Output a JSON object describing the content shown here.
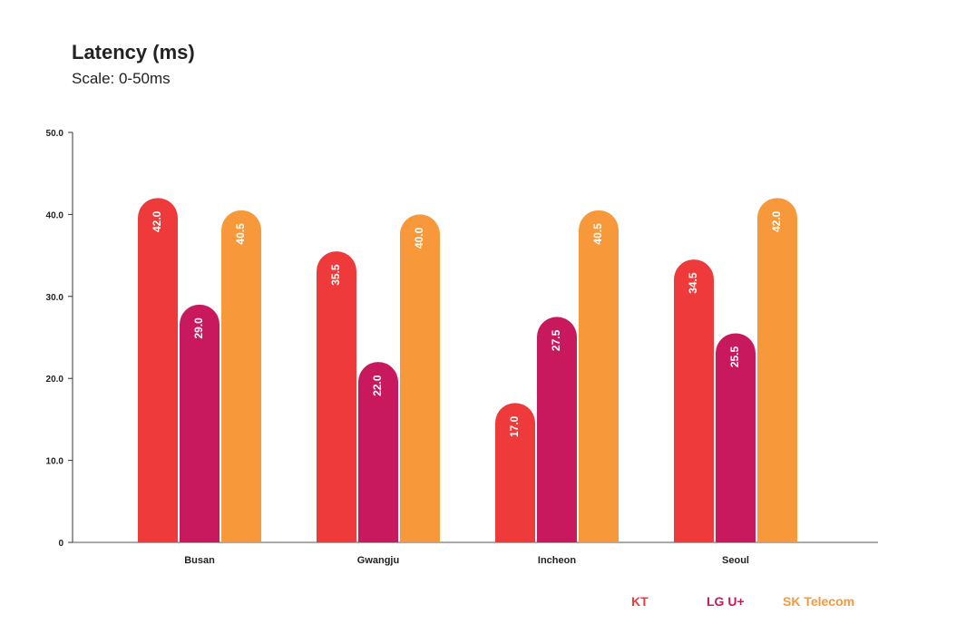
{
  "chart_data": {
    "type": "bar",
    "title": "Latency (ms)",
    "subtitle": "Scale: 0-50ms",
    "categories": [
      "Busan",
      "Gwangju",
      "Incheon",
      "Seoul"
    ],
    "series": [
      {
        "name": "KT",
        "color": "#EE3A3A",
        "values": [
          42.0,
          35.5,
          17.0,
          34.5
        ]
      },
      {
        "name": "LG U+",
        "color": "#C8195E",
        "values": [
          29.0,
          22.0,
          27.5,
          25.5
        ]
      },
      {
        "name": "SK Telecom",
        "color": "#F7993A",
        "values": [
          40.5,
          40.0,
          40.5,
          42.0
        ]
      }
    ],
    "ylim": [
      0,
      50
    ],
    "yticks": [
      "0",
      "10.0",
      "20.0",
      "30.0",
      "40.0",
      "50.0"
    ],
    "ytick_values": [
      0,
      10,
      20,
      30,
      40,
      50
    ],
    "grid": false,
    "legend_position": "bottom-right"
  }
}
